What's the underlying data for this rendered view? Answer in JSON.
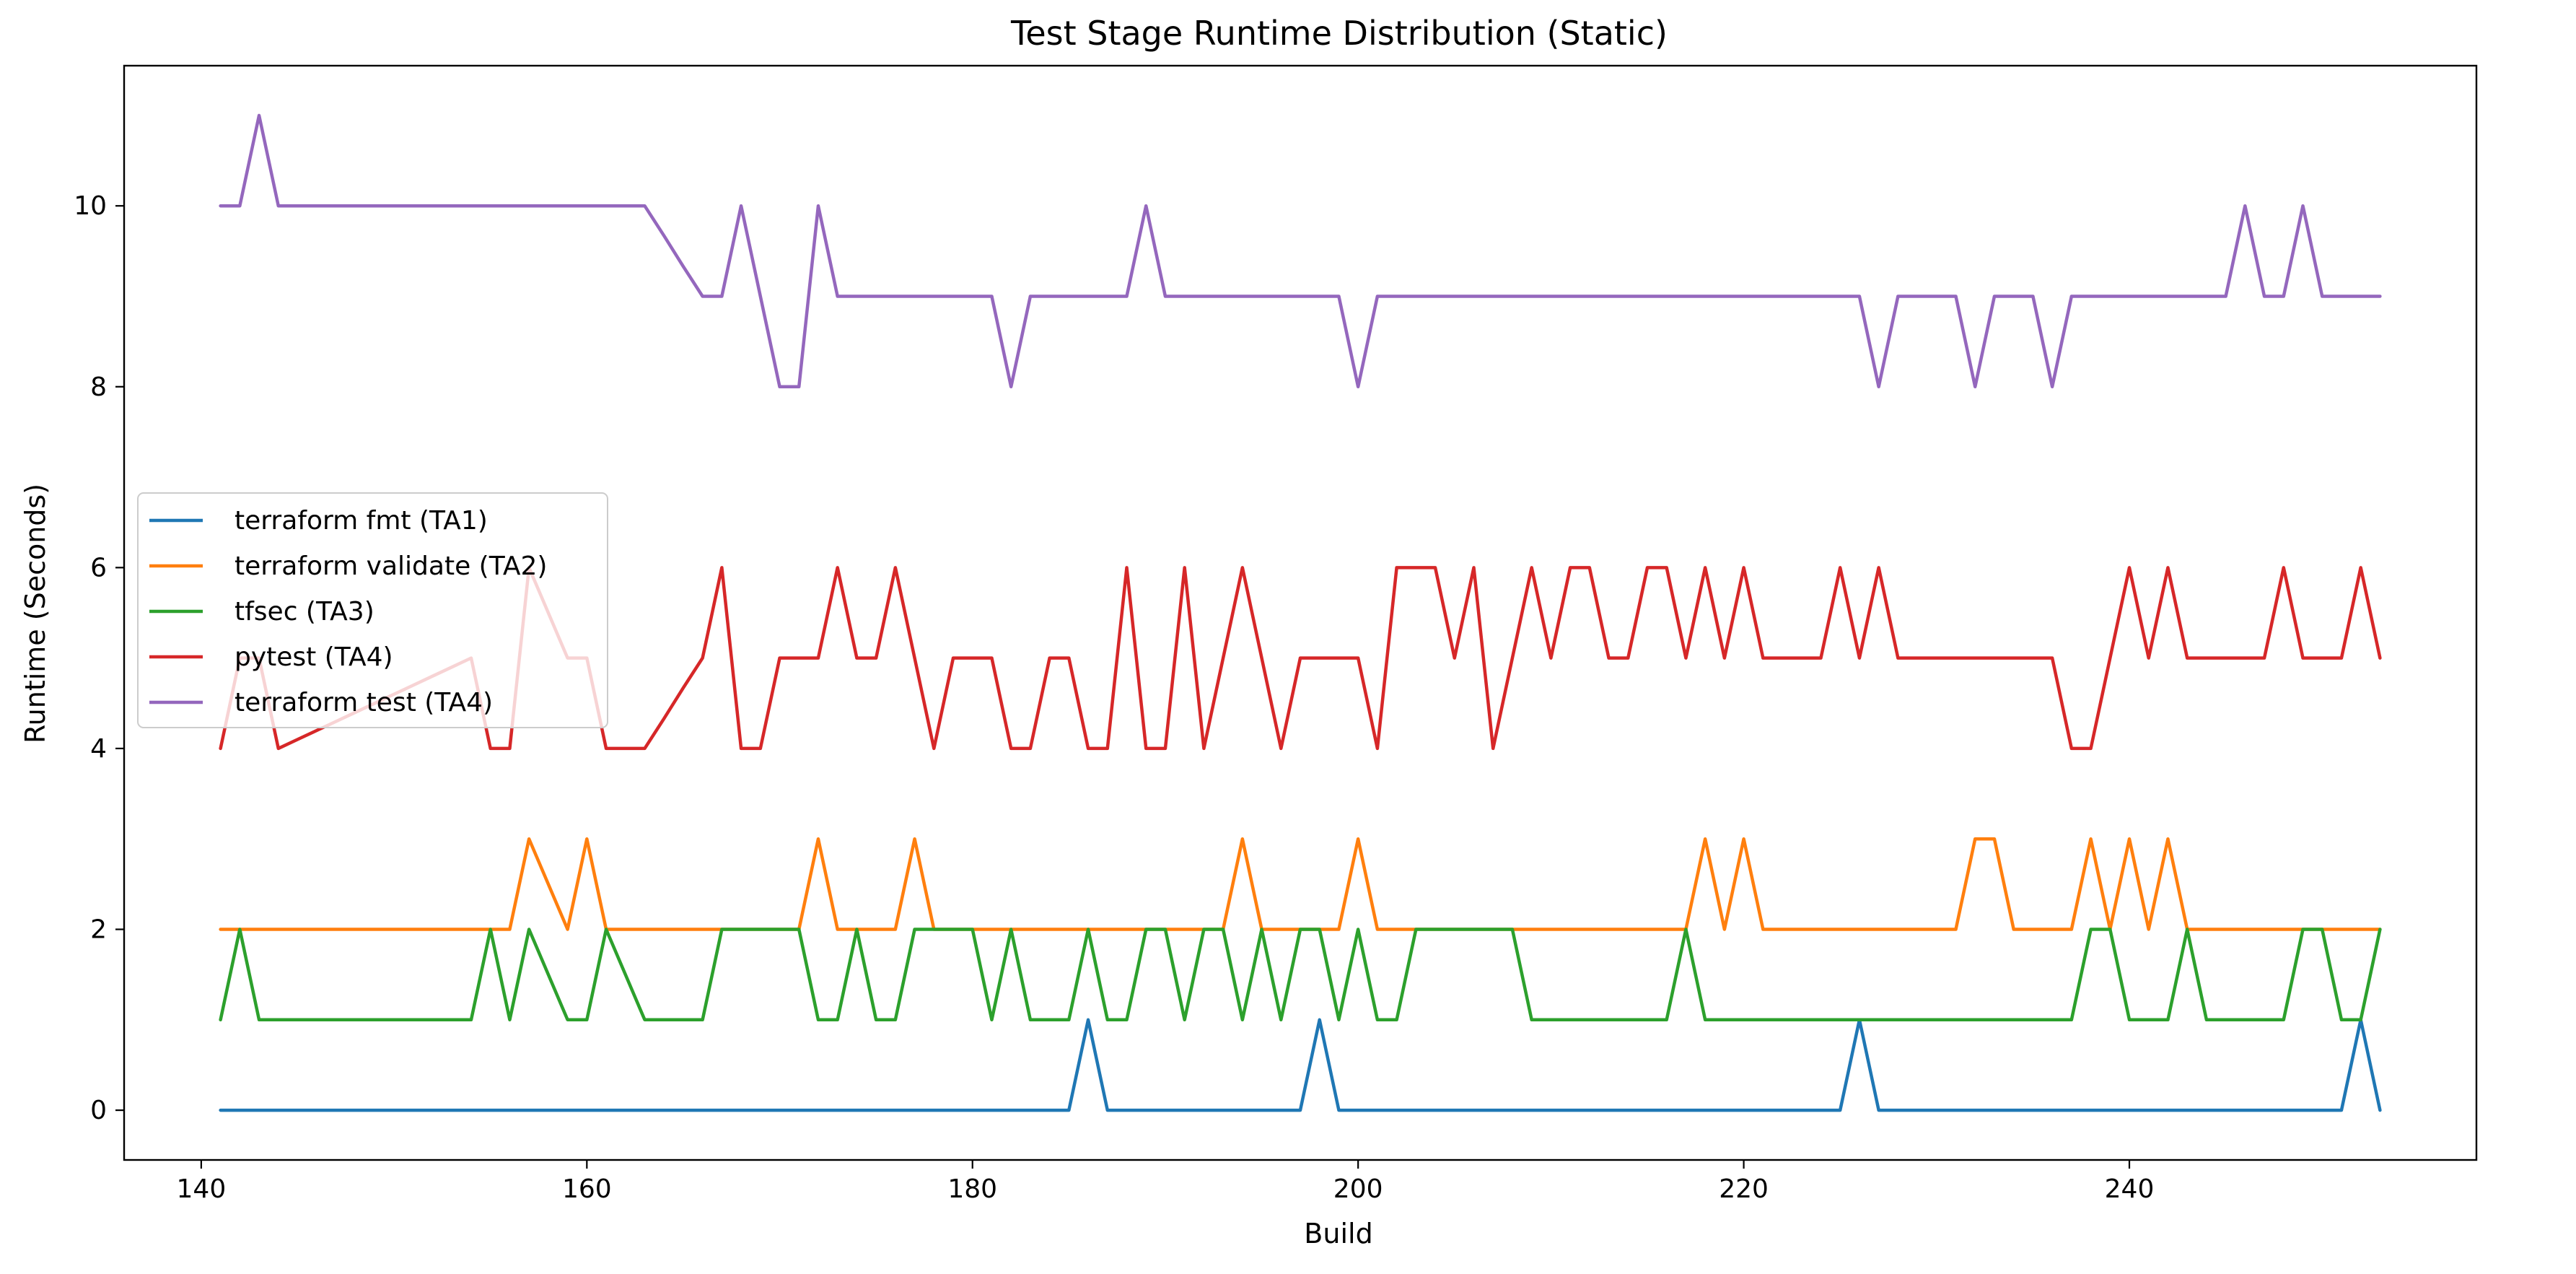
{
  "chart_data": {
    "type": "line",
    "title": "Test Stage Runtime Distribution (Static)",
    "xlabel": "Build",
    "ylabel": "Runtime (Seconds)",
    "xlim": [
      136,
      258
    ],
    "ylim": [
      -0.55,
      11.55
    ],
    "xticks": [
      140,
      160,
      180,
      200,
      220,
      240
    ],
    "yticks": [
      0,
      2,
      4,
      6,
      8,
      10
    ],
    "grid": false,
    "legend": "center-left",
    "x": [
      141,
      142,
      143,
      144,
      145,
      146,
      147,
      148,
      149,
      150,
      151,
      152,
      153,
      154,
      155,
      156,
      157,
      158,
      159,
      160,
      161,
      162,
      163,
      164,
      165,
      166,
      167,
      168,
      169,
      170,
      171,
      172,
      173,
      174,
      175,
      176,
      177,
      178,
      179,
      180,
      181,
      182,
      183,
      184,
      185,
      186,
      187,
      188,
      189,
      190,
      191,
      192,
      193,
      194,
      195,
      196,
      197,
      198,
      199,
      200,
      201,
      202,
      203,
      204,
      205,
      206,
      207,
      208,
      209,
      210,
      211,
      212,
      213,
      214,
      215,
      216,
      217,
      218,
      219,
      220,
      221,
      222,
      223,
      224,
      225,
      226,
      227,
      228,
      229,
      230,
      231,
      232,
      233,
      234,
      235,
      236,
      237,
      238,
      239,
      240,
      241,
      242,
      243,
      244,
      245,
      246,
      247,
      248,
      249,
      250,
      251,
      252,
      253
    ],
    "series": [
      {
        "name": "terraform fmt (TA1)",
        "color": "#1f77b4",
        "values": [
          0,
          0,
          0,
          0,
          0,
          0,
          0,
          0,
          0,
          0,
          0,
          0,
          0,
          0,
          0,
          0,
          0,
          0,
          0,
          0,
          0,
          0,
          0,
          0,
          0,
          0,
          0,
          0,
          0,
          0,
          0,
          0,
          0,
          0,
          0,
          0,
          0,
          0,
          0,
          0,
          0,
          0,
          0,
          0,
          0,
          1,
          0,
          0,
          0,
          0,
          0,
          0,
          0,
          0,
          0,
          0,
          0,
          1,
          0,
          0,
          0,
          0,
          0,
          0,
          0,
          0,
          0,
          0,
          0,
          0,
          0,
          0,
          0,
          0,
          0,
          0,
          0,
          0,
          0,
          0,
          0,
          0,
          0,
          0,
          0,
          1,
          0,
          0,
          0,
          0,
          0,
          0,
          0,
          0,
          0,
          0,
          0,
          0,
          0,
          0,
          0,
          0,
          0,
          0,
          0,
          0,
          0,
          0,
          0,
          0,
          0,
          1,
          0
        ]
      },
      {
        "name": "terraform validate (TA2)",
        "color": "#ff7f0e",
        "values": [
          2,
          2,
          2,
          2,
          2,
          2,
          2,
          2,
          2,
          2,
          2,
          2,
          2,
          2,
          2,
          2,
          3,
          2.5,
          2,
          3,
          2,
          2,
          2,
          2,
          2,
          2,
          2,
          2,
          2,
          2,
          2,
          3,
          2,
          2,
          2,
          2,
          3,
          2,
          2,
          2,
          2,
          2,
          2,
          2,
          2,
          2,
          2,
          2,
          2,
          2,
          2,
          2,
          2,
          3,
          2,
          2,
          2,
          2,
          2,
          3,
          2,
          2,
          2,
          2,
          2,
          2,
          2,
          2,
          2,
          2,
          2,
          2,
          2,
          2,
          2,
          2,
          2,
          3,
          2,
          3,
          2,
          2,
          2,
          2,
          2,
          2,
          2,
          2,
          2,
          2,
          2,
          3,
          3,
          2,
          2,
          2,
          2,
          3,
          2,
          3,
          2,
          3,
          2,
          2,
          2,
          2,
          2,
          2,
          2,
          2,
          2,
          2,
          2
        ]
      },
      {
        "name": "tfsec (TA3)",
        "color": "#2ca02c",
        "values": [
          1,
          2,
          1,
          1,
          1,
          1,
          1,
          1,
          1,
          1,
          1,
          1,
          1,
          1,
          2,
          1,
          2,
          1.5,
          1,
          1,
          2,
          1.5,
          1,
          1,
          1,
          1,
          2,
          2,
          2,
          2,
          2,
          1,
          1,
          2,
          1,
          1,
          2,
          2,
          2,
          2,
          1,
          2,
          1,
          1,
          1,
          2,
          1,
          1,
          2,
          2,
          1,
          2,
          2,
          1,
          2,
          1,
          2,
          2,
          1,
          2,
          1,
          1,
          2,
          2,
          2,
          2,
          2,
          2,
          1,
          1,
          1,
          1,
          1,
          1,
          1,
          1,
          2,
          1,
          1,
          1,
          1,
          1,
          1,
          1,
          1,
          1,
          1,
          1,
          1,
          1,
          1,
          1,
          1,
          1,
          1,
          1,
          1,
          2,
          2,
          1,
          1,
          1,
          2,
          1,
          1,
          1,
          1,
          1,
          2,
          2,
          1,
          1,
          2
        ]
      },
      {
        "name": "pytest (TA4)",
        "color": "#d62728",
        "values": [
          4,
          5,
          5,
          4,
          4.1,
          4.2,
          4.3,
          4.4,
          4.5,
          4.6,
          4.7,
          4.8,
          4.9,
          5,
          4,
          4,
          6,
          5.5,
          5,
          5,
          4,
          4,
          4,
          4.33,
          4.67,
          5,
          6,
          4,
          4,
          5,
          5,
          5,
          6,
          5,
          5,
          6,
          5,
          4,
          5,
          5,
          5,
          4,
          4,
          5,
          5,
          4,
          4,
          6,
          4,
          4,
          6,
          4,
          5,
          6,
          5,
          4,
          5,
          5,
          5,
          5,
          4,
          6,
          6,
          6,
          5,
          6,
          4,
          5,
          6,
          5,
          6,
          6,
          5,
          5,
          6,
          6,
          5,
          6,
          5,
          6,
          5,
          5,
          5,
          5,
          6,
          5,
          6,
          5,
          5,
          5,
          5,
          5,
          5,
          5,
          5,
          5,
          4,
          4,
          5,
          6,
          5,
          6,
          5,
          5,
          5,
          5,
          5,
          6,
          5,
          5,
          5,
          6,
          5
        ]
      },
      {
        "name": "terraform test (TA4)",
        "color": "#9467bd",
        "values": [
          10,
          10,
          11,
          10,
          10,
          10,
          10,
          10,
          10,
          10,
          10,
          10,
          10,
          10,
          10,
          10,
          10,
          10,
          10,
          10,
          10,
          10,
          10,
          9.67,
          9.33,
          9,
          9,
          10,
          9,
          8,
          8,
          10,
          9,
          9,
          9,
          9,
          9,
          9,
          9,
          9,
          9,
          8,
          9,
          9,
          9,
          9,
          9,
          9,
          10,
          9,
          9,
          9,
          9,
          9,
          9,
          9,
          9,
          9,
          9,
          8,
          9,
          9,
          9,
          9,
          9,
          9,
          9,
          9,
          9,
          9,
          9,
          9,
          9,
          9,
          9,
          9,
          9,
          9,
          9,
          9,
          9,
          9,
          9,
          9,
          9,
          9,
          8,
          9,
          9,
          9,
          9,
          8,
          9,
          9,
          9,
          8,
          9,
          9,
          9,
          9,
          9,
          9,
          9,
          9,
          9,
          10,
          9,
          9,
          10,
          9,
          9,
          9,
          9
        ]
      }
    ]
  }
}
